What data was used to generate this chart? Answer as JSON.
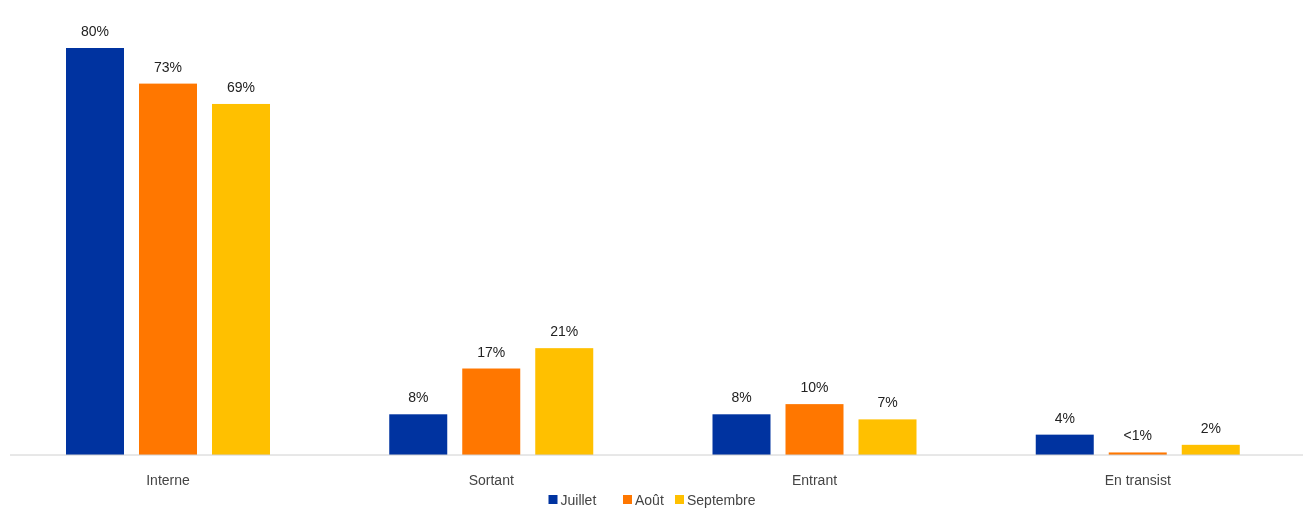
{
  "chart_data": {
    "type": "bar",
    "categories": [
      "Interne",
      "Sortant",
      "Entrant",
      "En transist"
    ],
    "series": [
      {
        "name": "Juillet",
        "color": "#0033a0",
        "values": [
          80,
          8,
          8,
          4
        ],
        "value_labels": [
          "80%",
          "8%",
          "8%",
          "4%"
        ]
      },
      {
        "name": "Août",
        "color": "#ff7700",
        "values": [
          73,
          17,
          10,
          0.5
        ],
        "value_labels": [
          "73%",
          "17%",
          "10%",
          "<1%"
        ]
      },
      {
        "name": "Septembre",
        "color": "#ffc000",
        "values": [
          69,
          21,
          7,
          2
        ],
        "value_labels": [
          "69%",
          "21%",
          "7%",
          "2%"
        ]
      }
    ],
    "legend": "bottom"
  }
}
